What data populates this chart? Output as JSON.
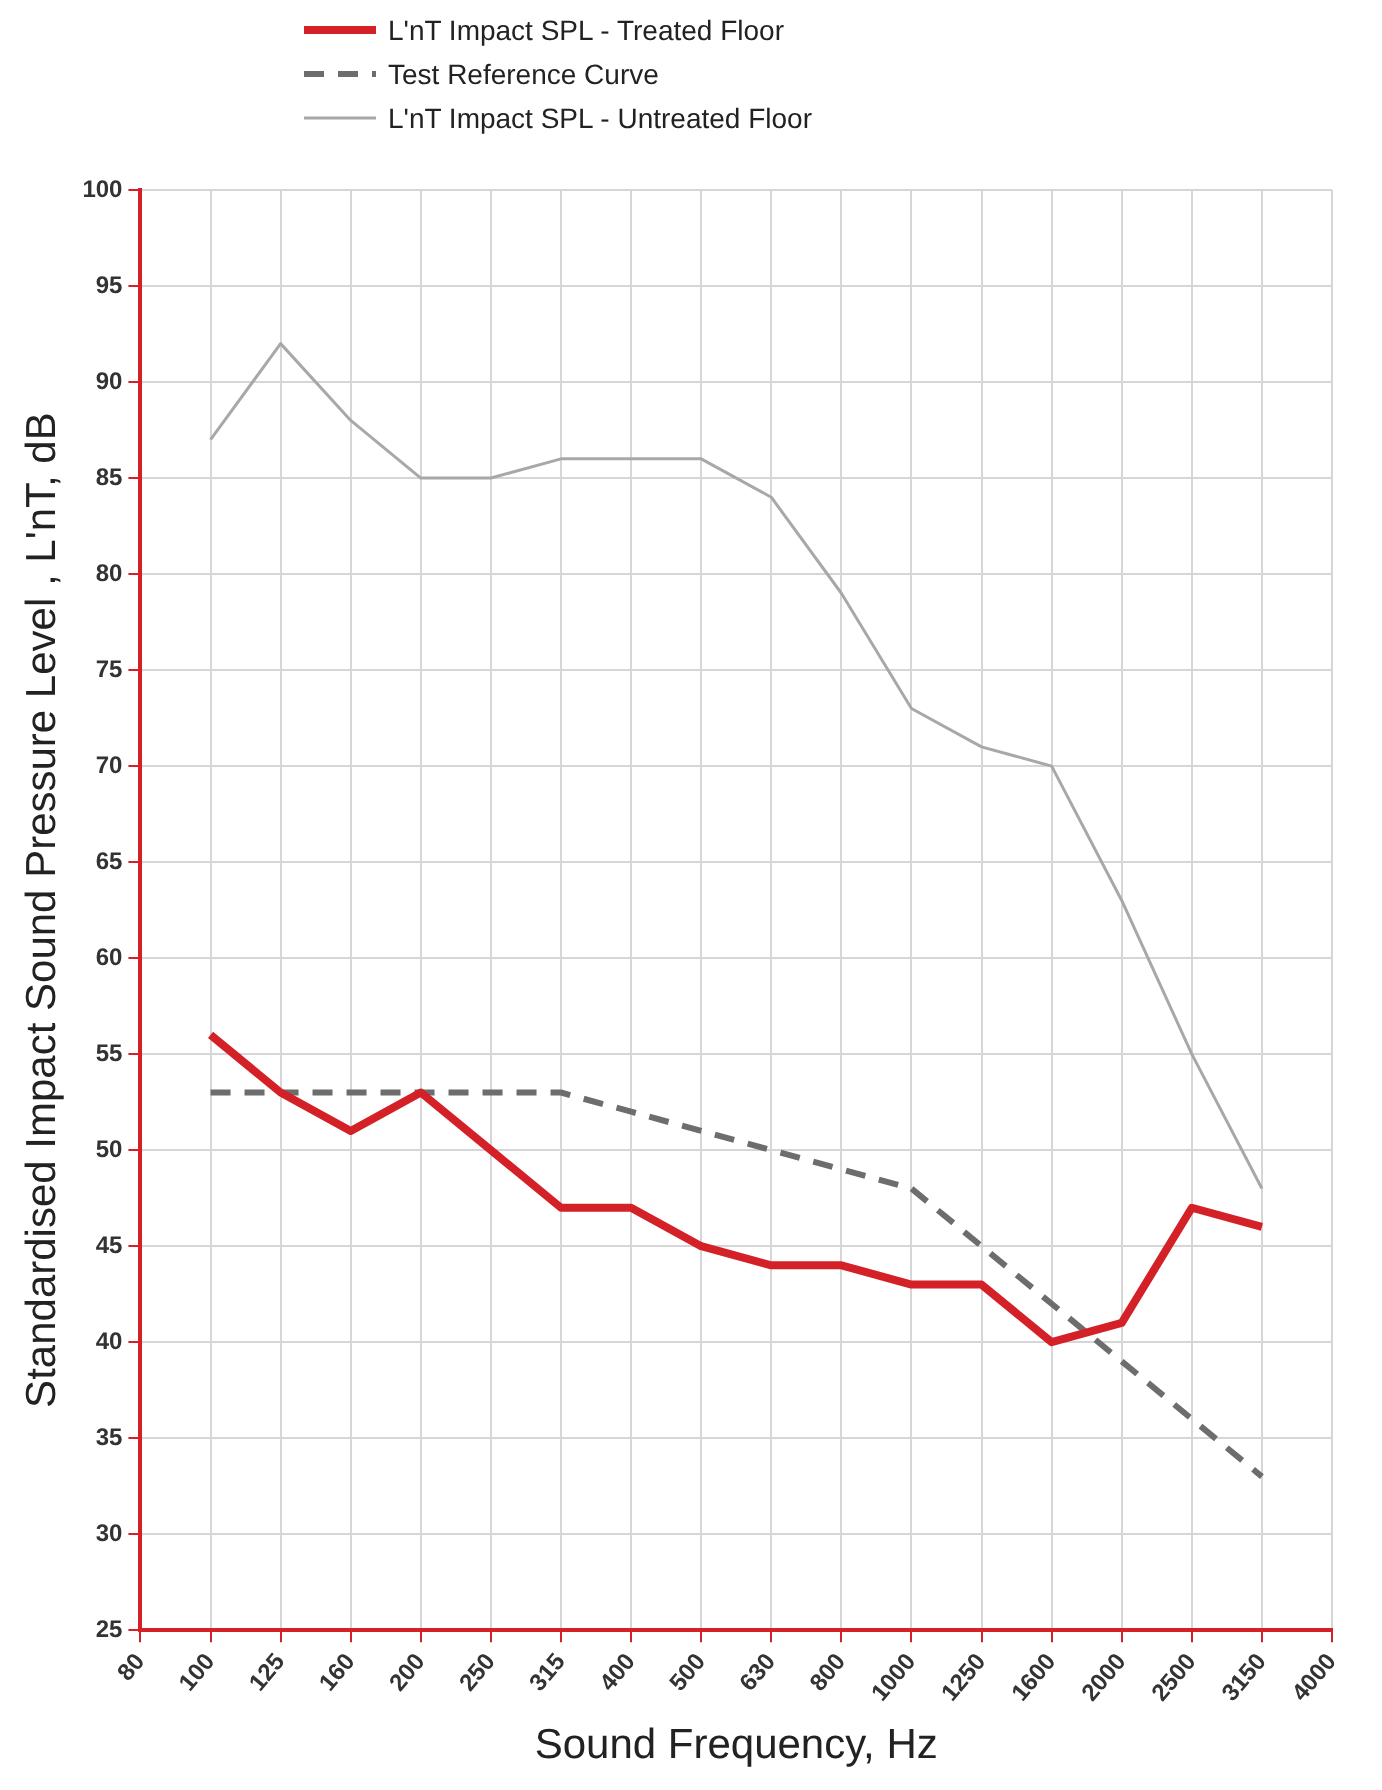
{
  "chart_data": {
    "type": "line",
    "xlabel": "Sound Frequency, Hz",
    "ylabel": "Standardised Impact Sound Pressure Level , L'nT, dB",
    "categories": [
      "80",
      "100",
      "125",
      "160",
      "200",
      "250",
      "315",
      "400",
      "500",
      "630",
      "800",
      "1000",
      "1250",
      "1600",
      "2000",
      "2500",
      "3150",
      "4000"
    ],
    "series": [
      {
        "name": "L'nT Impact SPL - Treated Floor",
        "color": "#d42027",
        "line_style": "solid",
        "values": [
          null,
          56,
          53,
          51,
          53,
          50,
          47,
          47,
          45,
          44,
          44,
          43,
          43,
          40,
          41,
          47,
          46,
          null
        ]
      },
      {
        "name": "Test Reference Curve",
        "color": "#6d6d6d",
        "line_style": "dashed",
        "values": [
          null,
          53,
          53,
          53,
          53,
          53,
          53,
          52,
          51,
          50,
          49,
          48,
          45,
          42,
          39,
          36,
          33,
          null
        ]
      },
      {
        "name": "L'nT Impact SPL - Untreated Floor",
        "color": "#a8a8a8",
        "line_style": "solid",
        "values": [
          null,
          87,
          92,
          88,
          85,
          85,
          86,
          86,
          86,
          84,
          79,
          73,
          71,
          70,
          63,
          55,
          48,
          null
        ]
      }
    ],
    "ylim": [
      25,
      100
    ],
    "yticks": [
      25,
      30,
      35,
      40,
      45,
      50,
      55,
      60,
      65,
      70,
      75,
      80,
      85,
      90,
      95,
      100
    ],
    "grid": true,
    "legend": "top",
    "marker": "none"
  }
}
